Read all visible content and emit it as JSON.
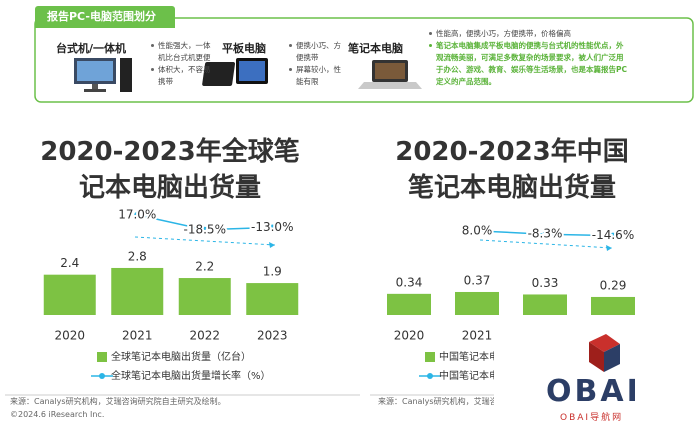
{
  "header": {
    "title": "报告PC-电脑范围划分",
    "items": [
      {
        "name": "台式机/一体机",
        "points": [
          "性能强大，一体机比台式机更便",
          "体积大，不容易携带"
        ]
      },
      {
        "name": "平板电脑",
        "points": [
          "便携小巧、方便携带",
          "屏幕较小，性能有限"
        ]
      },
      {
        "name": "笔记本电脑",
        "points": [
          "性能高，便携小巧，方便携带，价格偏高",
          "笔记本电脑集成平板电脑的便携与台式机的性能优点，外观流畅美丽，可满足多数复杂的场景要求，被人们广泛用于办公、游戏、教育、娱乐等生活场景，也是本篇报告PC定义的产品范围。"
        ]
      }
    ]
  },
  "chart_data": [
    {
      "type": "bar",
      "title": "2020-2023年全球笔记本电脑出货量",
      "categories": [
        "2020",
        "2021",
        "2022",
        "2023"
      ],
      "ylim": [
        0,
        5
      ],
      "y2lim": [
        -100,
        50
      ],
      "series": [
        {
          "name": "全球笔记本电脑出货量（亿台）",
          "color": "#7dc243",
          "values": [
            2.4,
            2.8,
            2.2,
            1.9
          ]
        },
        {
          "name": "全球笔记本电脑出货量增长率（%）",
          "type": "line",
          "axis": "y2",
          "color": "#2bb5e6",
          "values": [
            null,
            17.0,
            -18.5,
            -13.0
          ],
          "value_labels": [
            null,
            "17.0%",
            "-18.5%",
            "-13.0%"
          ]
        }
      ]
    },
    {
      "type": "bar",
      "title": "2020-2023年中国笔记本电脑出货量",
      "categories": [
        "2020",
        "2021",
        "2022",
        "2023"
      ],
      "ylim": [
        0,
        1.35
      ],
      "y2lim": [
        -150,
        150
      ],
      "series": [
        {
          "name": "中国笔记本电脑出货量（亿台）",
          "color": "#7dc243",
          "values": [
            0.34,
            0.37,
            0.33,
            0.29
          ]
        },
        {
          "name": "中国笔记本电脑出货量增长率（%）",
          "type": "line",
          "axis": "y2",
          "color": "#2bb5e6",
          "values": [
            null,
            8.0,
            -8.3,
            -14.6
          ],
          "value_labels": [
            null,
            "8.0%",
            "-8.3%",
            "-14.6%"
          ]
        }
      ]
    }
  ],
  "source": "来源：Canalys研究机构，艾瑞咨询研究院自主研究及绘制。",
  "copyright": "©2024.6 iResearch Inc.",
  "watermark": {
    "logo": "OBAI",
    "caption": "OBAI导航网"
  }
}
